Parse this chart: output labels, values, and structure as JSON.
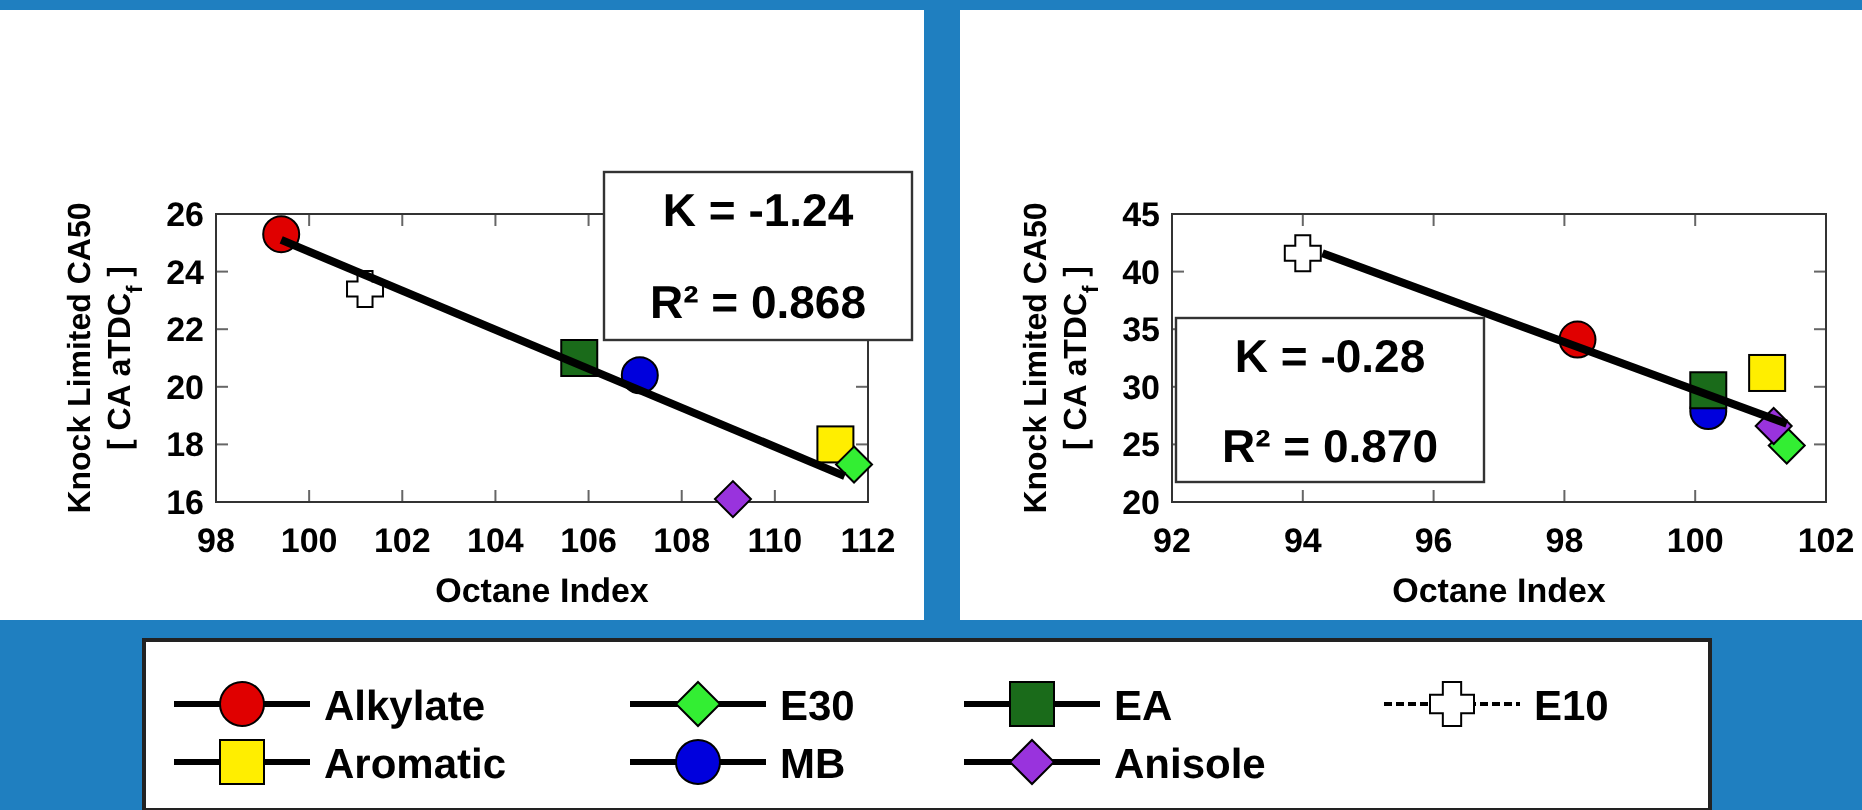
{
  "chart_data": [
    {
      "type": "scatter",
      "xlabel": "Octane Index",
      "ylabel": "Knock Limited CA50\n[ CA aTDC$_{f}$ ]",
      "xlim": [
        98,
        112
      ],
      "xticks": [
        98,
        100,
        102,
        104,
        106,
        108,
        110,
        112
      ],
      "ylim": [
        16,
        26
      ],
      "yticks": [
        16,
        18,
        20,
        22,
        24,
        26
      ],
      "grid": false,
      "legend": "bottom",
      "annotations": [
        "K = -1.24",
        "R² = 0.868"
      ],
      "series": [
        {
          "name": "Alkylate",
          "color": "#e00000",
          "marker": "circle",
          "x": [
            99.4
          ],
          "values": [
            25.3
          ]
        },
        {
          "name": "Aromatic",
          "color": "#ffee00",
          "marker": "square",
          "x": [
            111.3
          ],
          "values": [
            18.0
          ]
        },
        {
          "name": "E30",
          "color": "#33ee33",
          "marker": "diamond",
          "x": [
            111.7
          ],
          "values": [
            17.3
          ]
        },
        {
          "name": "MB",
          "color": "#0000dd",
          "marker": "circle",
          "x": [
            107.1
          ],
          "values": [
            20.4
          ]
        },
        {
          "name": "EA",
          "color": "#1a6b1a",
          "marker": "square",
          "x": [
            105.8
          ],
          "values": [
            21.0
          ]
        },
        {
          "name": "Anisole",
          "color": "#9933dd",
          "marker": "diamond",
          "x": [
            109.1
          ],
          "values": [
            16.1
          ]
        },
        {
          "name": "E10",
          "color": "#ffffff",
          "marker": "cross",
          "line_style": "dashed",
          "x": [
            101.2
          ],
          "values": [
            23.4
          ]
        },
        {
          "type": "line",
          "color": "#000000",
          "x": [
            99.4,
            111.5
          ],
          "values": [
            25.1,
            16.9
          ]
        }
      ]
    },
    {
      "type": "scatter",
      "xlabel": "Octane Index",
      "ylabel": "Knock Limited CA50\n[ CA aTDC$_{f}$ ]",
      "xlim": [
        92,
        102
      ],
      "xticks": [
        92,
        94,
        96,
        98,
        100,
        102
      ],
      "ylim": [
        20,
        45
      ],
      "yticks": [
        20,
        25,
        30,
        35,
        40,
        45
      ],
      "grid": false,
      "annotations": [
        "K = -0.28",
        "R² = 0.870"
      ],
      "series": [
        {
          "color": "#e00000",
          "marker": "circle",
          "x": [
            98.2
          ],
          "values": [
            34.1
          ]
        },
        {
          "color": "#ffee00",
          "marker": "square",
          "x": [
            101.1
          ],
          "values": [
            31.2
          ]
        },
        {
          "color": "#33ee33",
          "marker": "diamond",
          "x": [
            101.4
          ],
          "values": [
            24.9
          ]
        },
        {
          "color": "#0000dd",
          "marker": "circle",
          "x": [
            100.2
          ],
          "values": [
            27.9
          ]
        },
        {
          "color": "#1a6b1a",
          "marker": "square",
          "x": [
            100.2
          ],
          "values": [
            29.7
          ]
        },
        {
          "color": "#9933dd",
          "marker": "diamond",
          "x": [
            101.2
          ],
          "values": [
            26.6
          ]
        },
        {
          "color": "#ffffff",
          "marker": "cross",
          "x": [
            94.0
          ],
          "values": [
            41.6
          ]
        },
        {
          "type": "line",
          "color": "#000000",
          "x": [
            94.3,
            101.4
          ],
          "values": [
            41.6,
            26.8
          ]
        }
      ]
    }
  ]
}
